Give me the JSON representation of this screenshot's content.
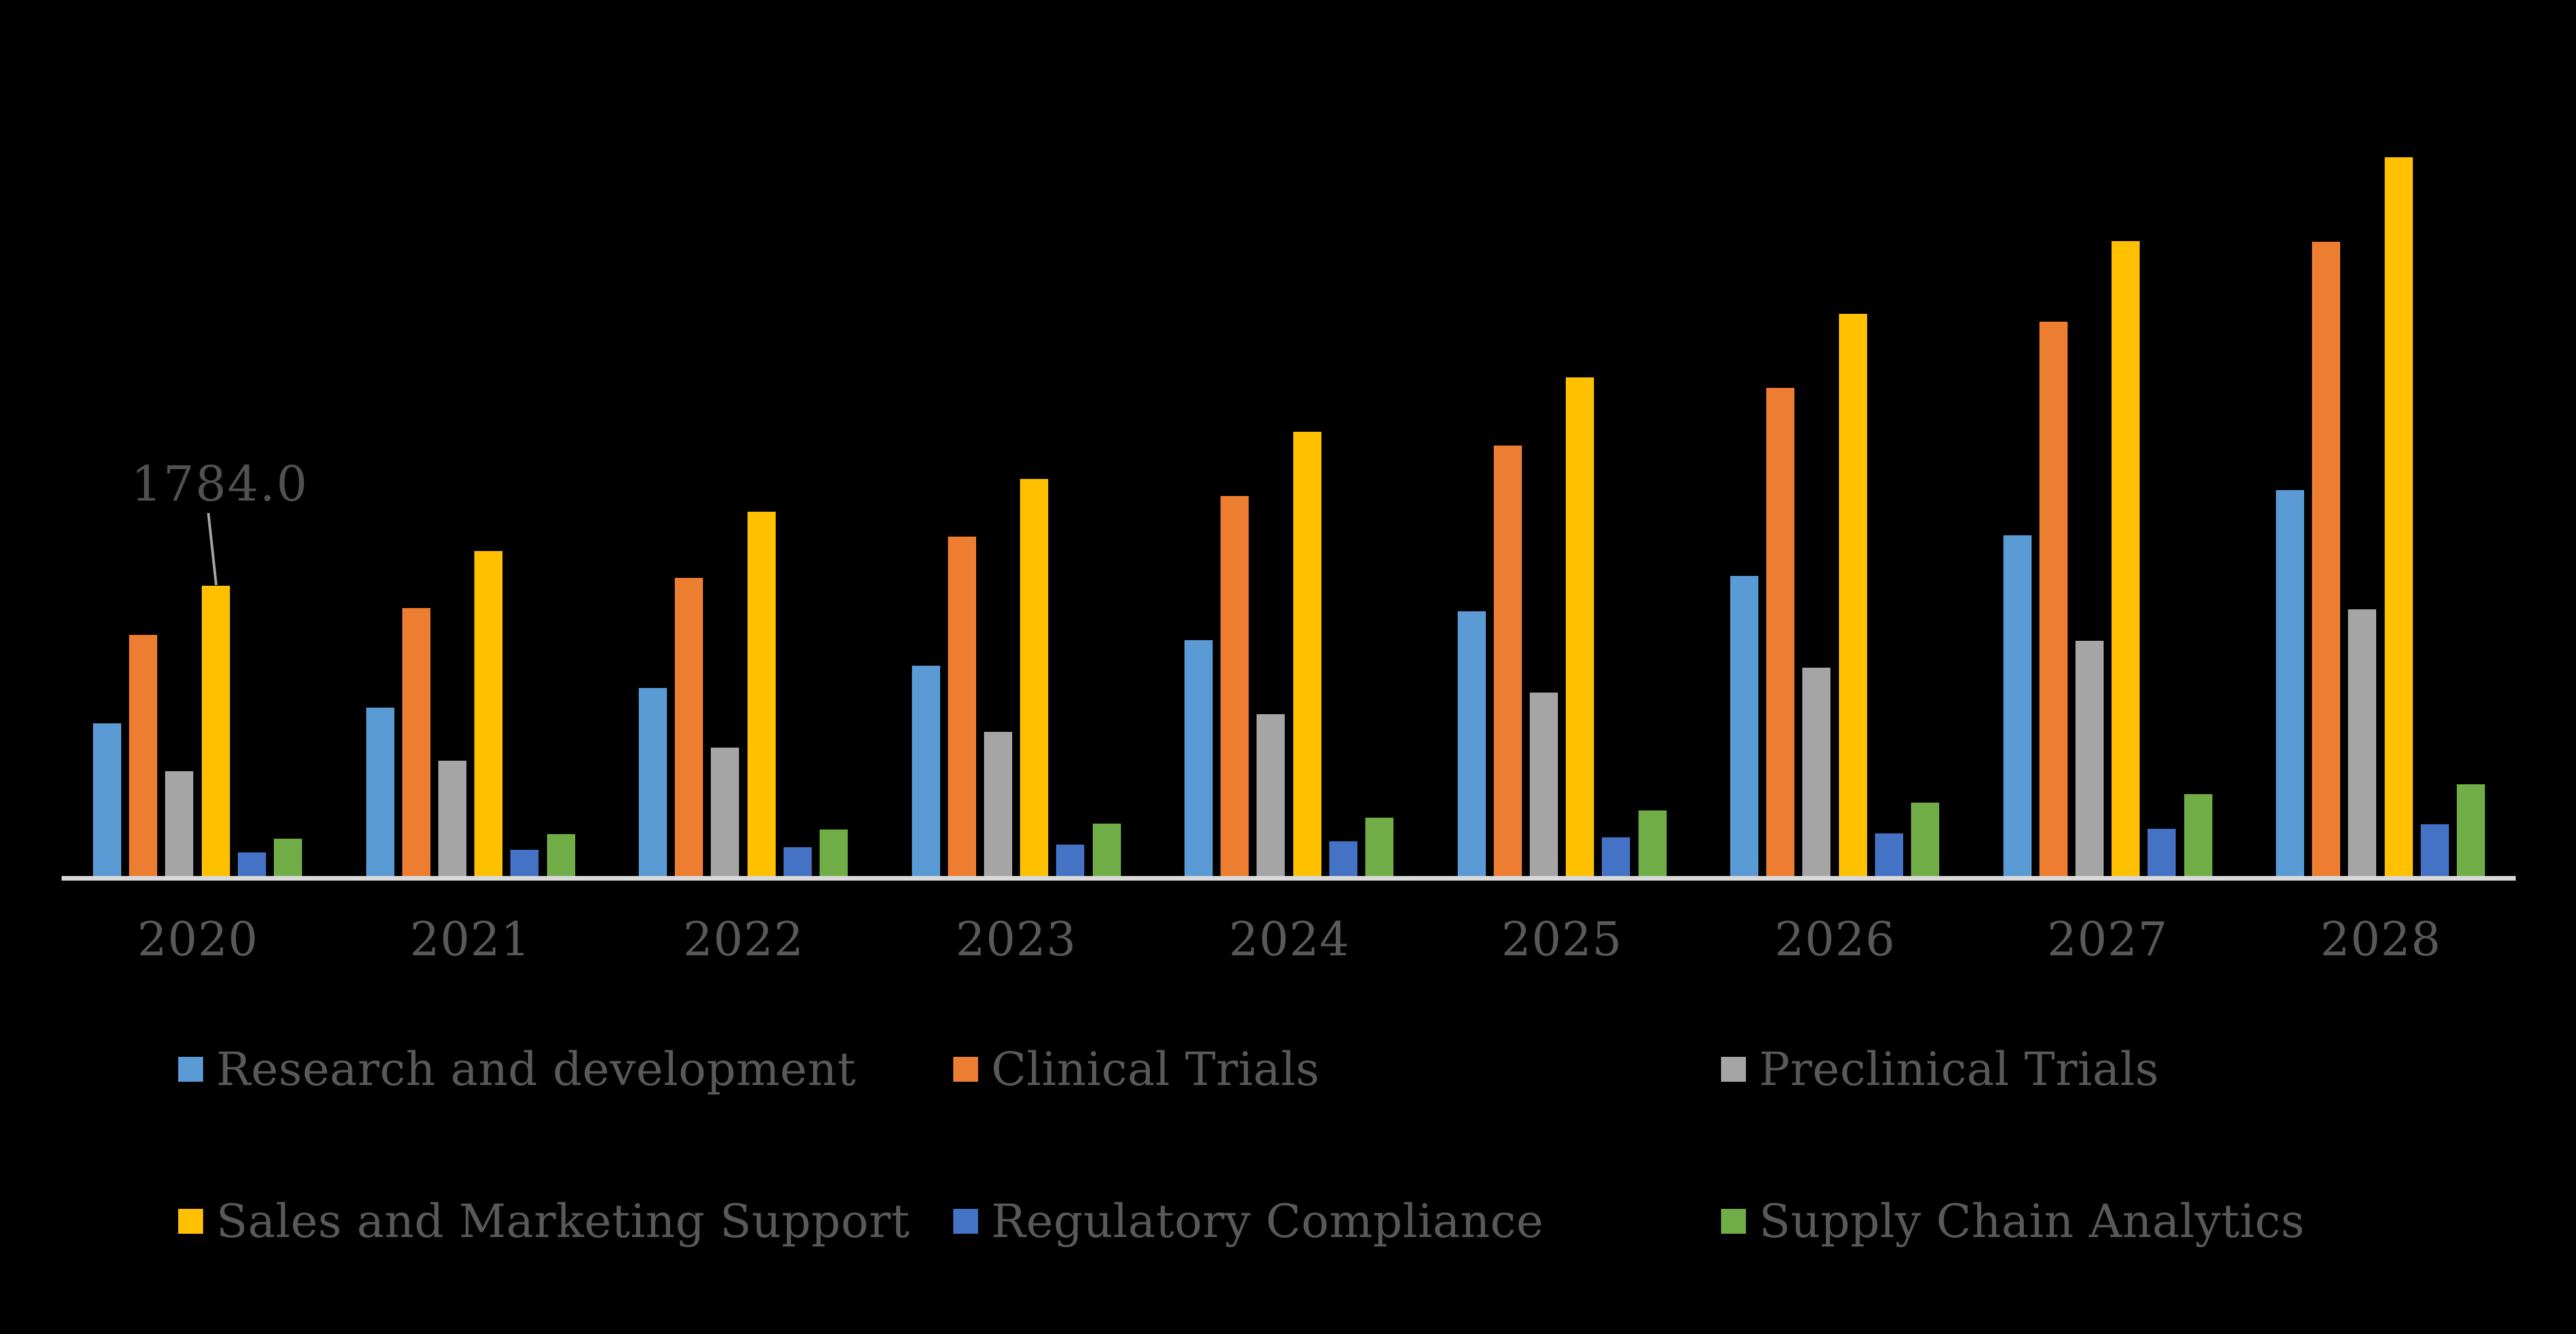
{
  "background_color": "#000000",
  "text_color": "#595959",
  "axis_color": "#D9D9D9",
  "leader_line_color": "#A6A6A6",
  "annotation": {
    "text": "1784.0",
    "series": "Sales and Marketing Support",
    "category": "2020",
    "value": 1784.0
  },
  "chart_data": {
    "type": "bar",
    "title": "",
    "xlabel": "",
    "ylabel": "",
    "ylim": [
      0,
      4500
    ],
    "grid": false,
    "y_axis_visible": false,
    "legend_position": "bottom",
    "legend_columns": 3,
    "categories": [
      "2020",
      "2021",
      "2022",
      "2023",
      "2024",
      "2025",
      "2026",
      "2027",
      "2028"
    ],
    "series": [
      {
        "name": "Research and development",
        "color": "#5B9BD5",
        "values": [
          938.0,
          1035.0,
          1156.0,
          1293.0,
          1450.0,
          1627.0,
          1844.0,
          2094.0,
          2371.0
        ]
      },
      {
        "name": "Clinical Trials",
        "color": "#ED7D31",
        "values": [
          1483.0,
          1647.0,
          1832.0,
          2086.0,
          2336.0,
          2646.0,
          3000.0,
          3407.0,
          3898.0
        ]
      },
      {
        "name": "Preclinical Trials",
        "color": "#A5A5A5",
        "values": [
          644.0,
          709.0,
          789.0,
          886.0,
          994.0,
          1127.0,
          1280.0,
          1446.0,
          1639.0
        ]
      },
      {
        "name": "Sales and Marketing Support",
        "color": "#FFC000",
        "values": [
          1784.0,
          1997.0,
          2239.0,
          2442.0,
          2731.0,
          3065.0,
          3455.0,
          3902.0,
          4417.0
        ]
      },
      {
        "name": "Regulatory Compliance",
        "color": "#4472C4",
        "values": [
          145.0,
          160.0,
          176.0,
          194.0,
          214.0,
          236.0,
          261.0,
          288.0,
          318.0
        ]
      },
      {
        "name": "Supply Chain Analytics",
        "color": "#70AD47",
        "values": [
          229.0,
          256.0,
          287.0,
          321.0,
          359.0,
          402.0,
          450.0,
          504.0,
          564.0
        ]
      }
    ]
  }
}
